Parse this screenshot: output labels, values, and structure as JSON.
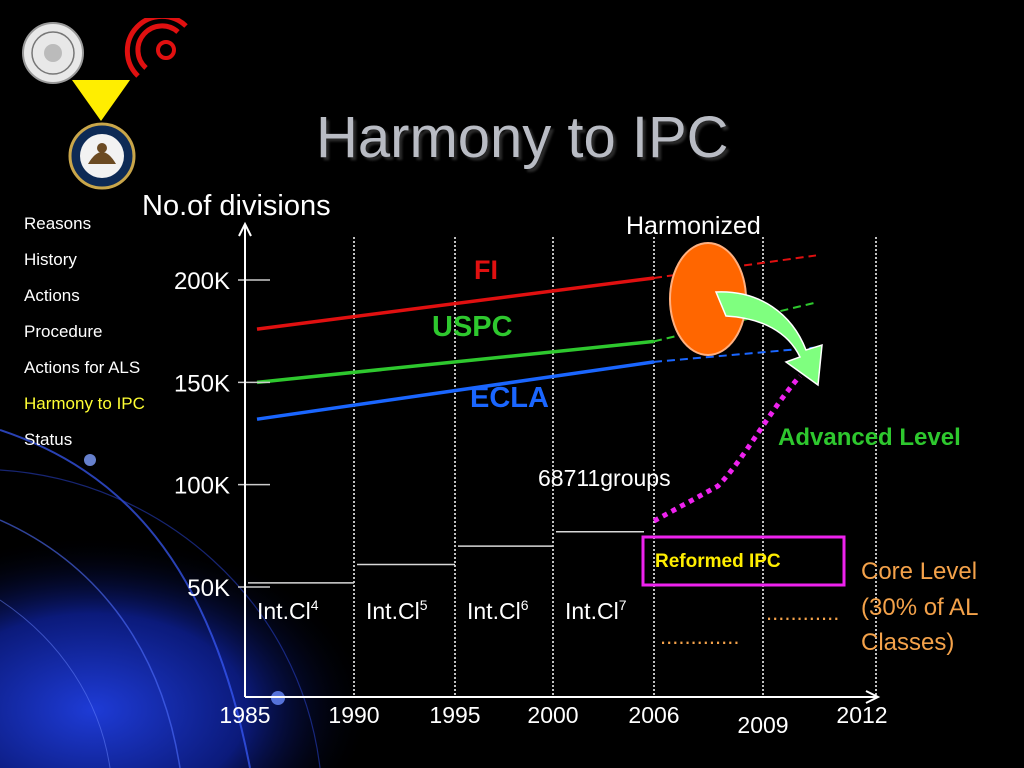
{
  "slide_title": "Harmony to IPC",
  "nav": {
    "items": [
      {
        "label": "Reasons",
        "active": false
      },
      {
        "label": "History",
        "active": false
      },
      {
        "label": "Actions",
        "active": false
      },
      {
        "label": "Procedure",
        "active": false
      },
      {
        "label": "Actions for ALS",
        "active": false
      },
      {
        "label": "Harmony to IPC",
        "active": true
      },
      {
        "label": "Status",
        "active": false
      }
    ]
  },
  "logos": [
    "japan-patent-office-seal",
    "epo-logo",
    "uspto-seal"
  ],
  "colors": {
    "fi": "#e01010",
    "uspc": "#2ec82e",
    "ecla": "#1a66ff",
    "advanced": "#ee22ee",
    "core": "#f4a24a",
    "harmonized": "#ff6600",
    "arrow": "#7fff7f"
  },
  "chart_data": {
    "type": "line",
    "ylabel": "No.of divisions",
    "x_ticks": [
      "1985",
      "1990",
      "1995",
      "2000",
      "2006",
      "2009",
      "2012"
    ],
    "y_ticks": [
      "50K",
      "100K",
      "150K",
      "200K"
    ],
    "xlim": [
      1985,
      2012
    ],
    "series": [
      {
        "name": "FI",
        "color": "#e01010",
        "points": [
          [
            1985,
            176000
          ],
          [
            2006,
            201000
          ],
          [
            2012,
            212000
          ]
        ]
      },
      {
        "name": "USPC",
        "color": "#2ec82e",
        "points": [
          [
            1985,
            150000
          ],
          [
            2006,
            170000
          ],
          [
            2012,
            189000
          ]
        ]
      },
      {
        "name": "ECLA",
        "color": "#1a66ff",
        "points": [
          [
            1985,
            132000
          ],
          [
            2006,
            160000
          ],
          [
            2012,
            167000
          ]
        ]
      }
    ],
    "ipc_steps": [
      {
        "label": "Int.Cl",
        "sup": "4",
        "start": 1985,
        "end": 1990,
        "value": 52000
      },
      {
        "label": "Int.Cl",
        "sup": "5",
        "start": 1990,
        "end": 1995,
        "value": 61000
      },
      {
        "label": "Int.Cl",
        "sup": "6",
        "start": 1995,
        "end": 2000,
        "value": 70000
      },
      {
        "label": "Int.Cl",
        "sup": "7",
        "start": 2000,
        "end": 2005,
        "value": 77000
      }
    ],
    "annotations": {
      "harmonized": "Harmonized",
      "advanced_level": "Advanced Level",
      "groups": "68711groups",
      "reformed_ipc": "Reformed IPC",
      "core_level": [
        "Core Level",
        "(30% of AL",
        "Classes)"
      ],
      "dots_lower": ".............",
      "dots_upper": "............"
    }
  }
}
